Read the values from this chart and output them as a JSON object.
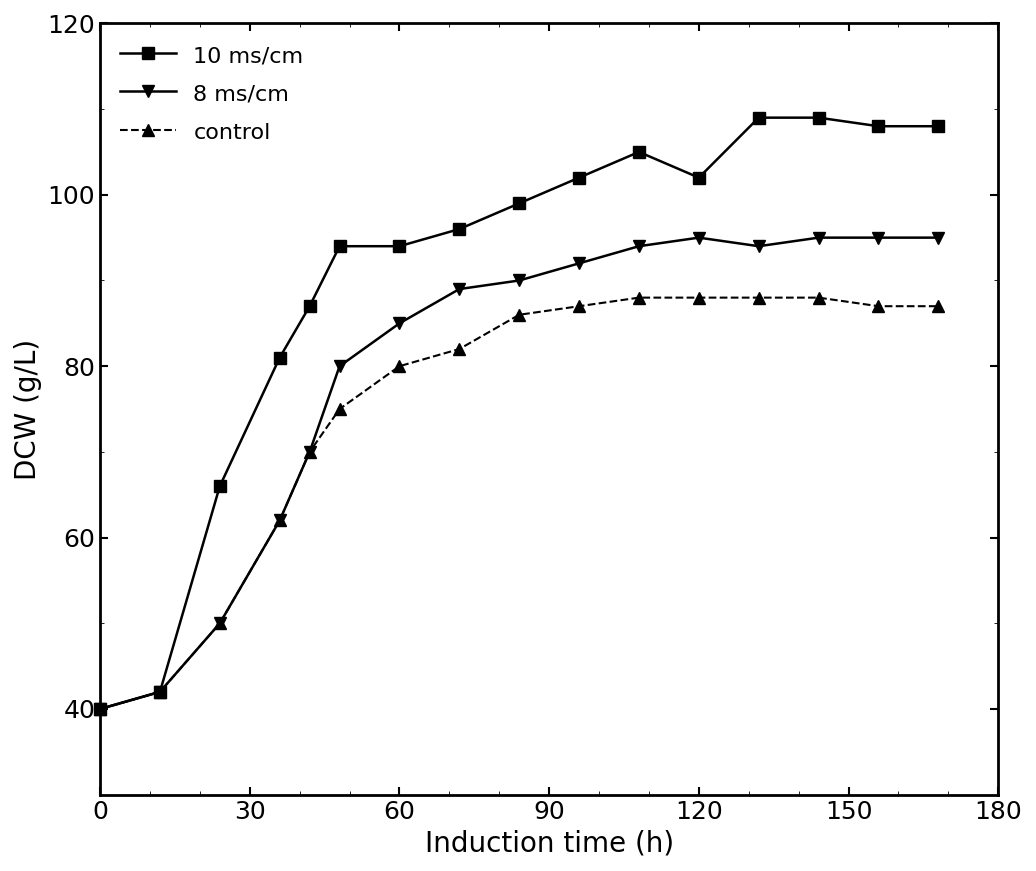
{
  "series": [
    {
      "label": "10 ms/cm",
      "x": [
        0,
        12,
        24,
        36,
        42,
        48,
        60,
        72,
        84,
        96,
        108,
        120,
        132,
        144,
        156,
        168
      ],
      "y": [
        40,
        42,
        66,
        81,
        87,
        94,
        94,
        96,
        99,
        102,
        105,
        102,
        109,
        109,
        108,
        108
      ],
      "color": "#000000",
      "linestyle": "-",
      "marker": "s",
      "markersize": 8,
      "linewidth": 1.8
    },
    {
      "label": "8 ms/cm",
      "x": [
        0,
        12,
        24,
        36,
        42,
        48,
        60,
        72,
        84,
        96,
        108,
        120,
        132,
        144,
        156,
        168
      ],
      "y": [
        40,
        42,
        50,
        62,
        70,
        80,
        85,
        89,
        90,
        92,
        94,
        95,
        94,
        95,
        95,
        95
      ],
      "color": "#000000",
      "linestyle": "-",
      "marker": "v",
      "markersize": 9,
      "linewidth": 1.8
    },
    {
      "label": "control",
      "x": [
        0,
        12,
        24,
        36,
        42,
        48,
        60,
        72,
        84,
        96,
        108,
        120,
        132,
        144,
        156,
        168
      ],
      "y": [
        40,
        42,
        50,
        62,
        70,
        75,
        80,
        82,
        86,
        87,
        88,
        88,
        88,
        88,
        87,
        87
      ],
      "color": "#000000",
      "linestyle": "--",
      "marker": "^",
      "markersize": 9,
      "linewidth": 1.5
    }
  ],
  "xlabel": "Induction time (h)",
  "ylabel": "DCW (g/L)",
  "xlim": [
    0,
    180
  ],
  "ylim": [
    30,
    120
  ],
  "xticks": [
    0,
    30,
    60,
    90,
    120,
    150,
    180
  ],
  "yticks": [
    40,
    60,
    80,
    100,
    120
  ],
  "xlabel_fontsize": 20,
  "ylabel_fontsize": 20,
  "tick_fontsize": 18,
  "legend_fontsize": 16,
  "background_color": "#ffffff"
}
